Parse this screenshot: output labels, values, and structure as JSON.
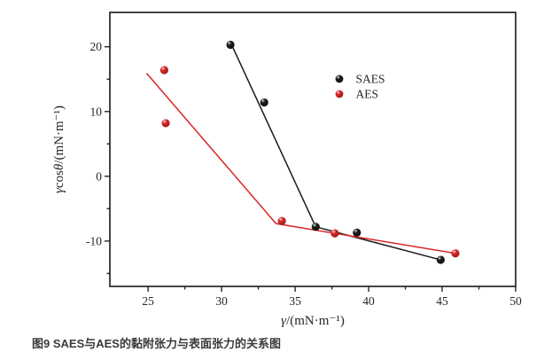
{
  "figure": {
    "caption": "图9 SAES与AES的黏附张力与表面张力的关系图"
  },
  "chart_data": {
    "type": "scatter",
    "title": "",
    "xlabel": "γ/(mN·m⁻¹)",
    "ylabel": "γcosθ/(mN·m⁻¹)",
    "xlim": [
      22.4,
      50
    ],
    "ylim": [
      -17,
      25.3
    ],
    "x_major_ticks": [
      25,
      30,
      35,
      40,
      45,
      50
    ],
    "x_minor_ticks": [
      27.5,
      32.5,
      37.5,
      42.5,
      47.5
    ],
    "y_major_ticks": [
      -10,
      0,
      10,
      20
    ],
    "y_minor_ticks": [
      -15,
      -5,
      5,
      15
    ],
    "grid": false,
    "legend": {
      "position": "inside-upper-right",
      "items": [
        "SAES",
        "AES"
      ]
    },
    "series": [
      {
        "name": "SAES",
        "color": "#1a1a1a",
        "marker": "sphere",
        "points": [
          [
            30.6,
            20.3
          ],
          [
            32.9,
            11.4
          ],
          [
            36.4,
            -7.8
          ],
          [
            39.2,
            -8.7
          ],
          [
            44.9,
            -12.9
          ]
        ],
        "trend": [
          [
            30.6,
            20.7
          ],
          [
            36.4,
            -7.8
          ],
          [
            44.9,
            -12.9
          ]
        ]
      },
      {
        "name": "AES",
        "color": "#d92628",
        "marker": "sphere",
        "points": [
          [
            26.1,
            16.4
          ],
          [
            26.2,
            8.2
          ],
          [
            34.1,
            -6.9
          ],
          [
            37.7,
            -8.8
          ],
          [
            45.9,
            -11.9
          ]
        ],
        "trend": [
          [
            24.9,
            15.9
          ],
          [
            33.7,
            -7.3
          ],
          [
            45.9,
            -11.9
          ]
        ]
      }
    ]
  }
}
